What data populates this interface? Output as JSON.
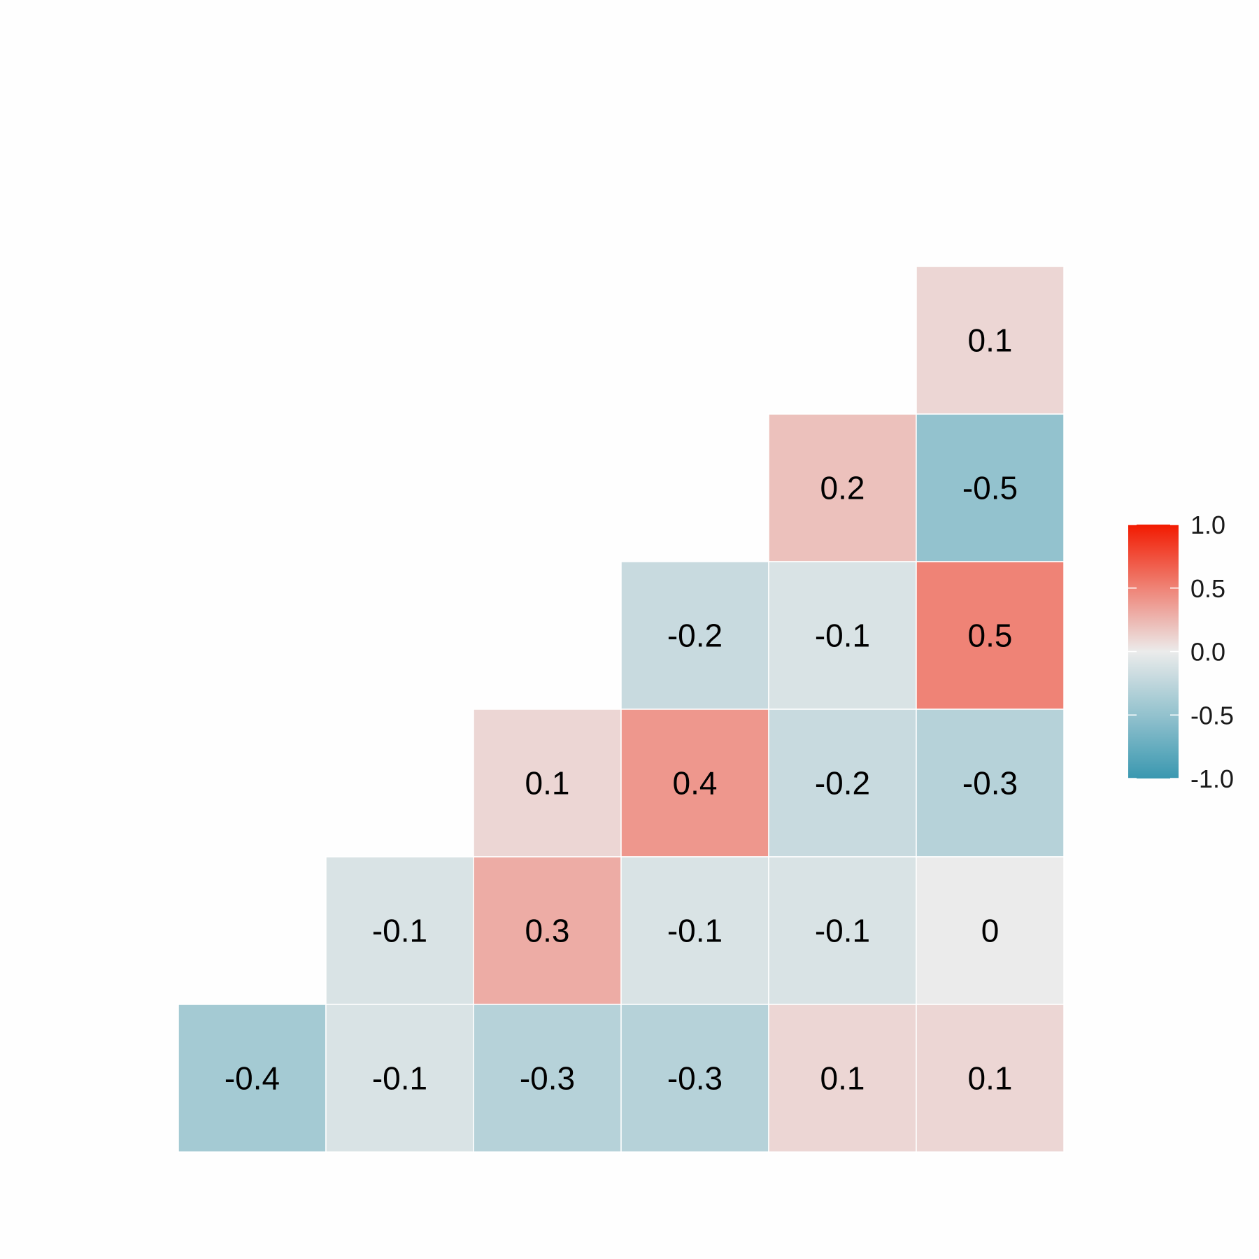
{
  "chart_data": {
    "type": "heatmap",
    "title": "",
    "xlabel": "",
    "ylabel": "",
    "grid": false,
    "legend_position": "right",
    "color_scale": {
      "low": "#3a98b0",
      "mid": "#ebebeb",
      "high": "#f21a00",
      "domain": [
        -1.0,
        1.0
      ]
    },
    "legend": {
      "title": "",
      "ticks": [
        {
          "value": 1.0,
          "label": "1.0"
        },
        {
          "value": 0.5,
          "label": "0.5"
        },
        {
          "value": 0.0,
          "label": "0.0"
        },
        {
          "value": -0.5,
          "label": "-0.5"
        },
        {
          "value": -1.0,
          "label": "-1.0"
        }
      ]
    },
    "n_columns": 6,
    "n_rows": 6,
    "cells": [
      {
        "row": 0,
        "col": 5,
        "value": 0.1,
        "label": "0.1"
      },
      {
        "row": 1,
        "col": 4,
        "value": 0.2,
        "label": "0.2"
      },
      {
        "row": 1,
        "col": 5,
        "value": -0.5,
        "label": "-0.5"
      },
      {
        "row": 2,
        "col": 3,
        "value": -0.2,
        "label": "-0.2"
      },
      {
        "row": 2,
        "col": 4,
        "value": -0.1,
        "label": "-0.1"
      },
      {
        "row": 2,
        "col": 5,
        "value": 0.5,
        "label": "0.5"
      },
      {
        "row": 3,
        "col": 2,
        "value": 0.1,
        "label": "0.1"
      },
      {
        "row": 3,
        "col": 3,
        "value": 0.4,
        "label": "0.4"
      },
      {
        "row": 3,
        "col": 4,
        "value": -0.2,
        "label": "-0.2"
      },
      {
        "row": 3,
        "col": 5,
        "value": -0.3,
        "label": "-0.3"
      },
      {
        "row": 4,
        "col": 1,
        "value": -0.1,
        "label": "-0.1"
      },
      {
        "row": 4,
        "col": 2,
        "value": 0.3,
        "label": "0.3"
      },
      {
        "row": 4,
        "col": 3,
        "value": -0.1,
        "label": "-0.1"
      },
      {
        "row": 4,
        "col": 4,
        "value": -0.1,
        "label": "-0.1"
      },
      {
        "row": 4,
        "col": 5,
        "value": 0.0,
        "label": "0"
      },
      {
        "row": 5,
        "col": 0,
        "value": -0.4,
        "label": "-0.4"
      },
      {
        "row": 5,
        "col": 1,
        "value": -0.1,
        "label": "-0.1"
      },
      {
        "row": 5,
        "col": 2,
        "value": -0.3,
        "label": "-0.3"
      },
      {
        "row": 5,
        "col": 3,
        "value": -0.3,
        "label": "-0.3"
      },
      {
        "row": 5,
        "col": 4,
        "value": 0.1,
        "label": "0.1"
      },
      {
        "row": 5,
        "col": 5,
        "value": 0.1,
        "label": "0.1"
      }
    ]
  }
}
